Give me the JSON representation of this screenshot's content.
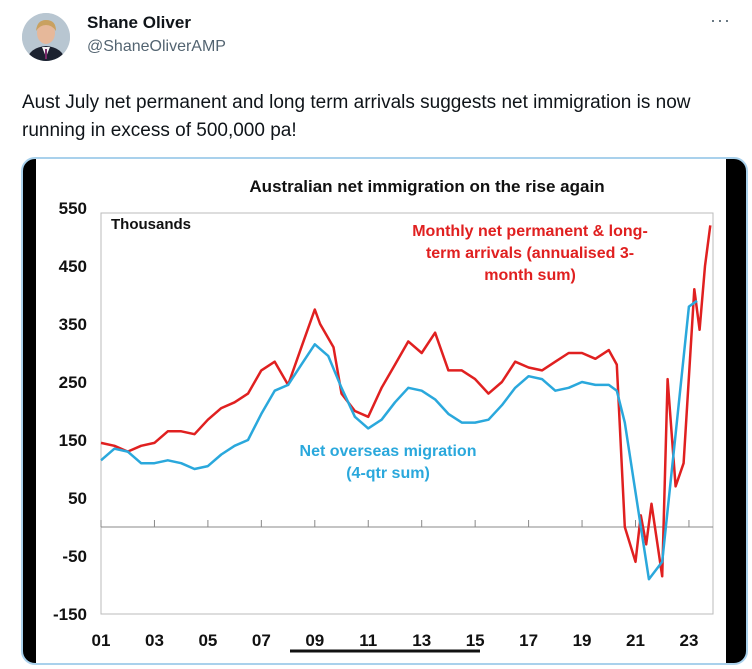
{
  "tweet": {
    "author_name": "Shane Oliver",
    "author_handle": "@ShaneOliverAMP",
    "more_icon": "more-horizontal-icon",
    "text": "Aust July net permanent and long term arrivals suggests net immigration is now running in excess of 500,000 pa!"
  },
  "chart_data": {
    "type": "line",
    "title": "Australian net immigration on the rise again",
    "unit_label": "Thousands",
    "ylim": [
      -150,
      550
    ],
    "yticks": [
      "550",
      "450",
      "350",
      "250",
      "150",
      "50",
      "-50",
      "-150"
    ],
    "xticks": [
      "01",
      "03",
      "05",
      "07",
      "09",
      "11",
      "13",
      "15",
      "17",
      "19",
      "21",
      "23"
    ],
    "xlim": [
      2001,
      2023.9
    ],
    "grid": false,
    "series": [
      {
        "name": "Monthly net permanent & long-term arrivals (annualised 3-month sum)",
        "color": "#e02020",
        "label_lines": [
          "Monthly net permanent & long-",
          "term arrivals (annualised 3-",
          "month sum)"
        ],
        "x": [
          2001,
          2001.5,
          2002,
          2002.5,
          2003,
          2003.5,
          2004,
          2004.5,
          2005,
          2005.5,
          2006,
          2006.5,
          2007,
          2007.5,
          2008,
          2008.5,
          2009,
          2009.2,
          2009.7,
          2010,
          2010.5,
          2011,
          2011.5,
          2012,
          2012.5,
          2013,
          2013.5,
          2014,
          2014.5,
          2015,
          2015.5,
          2016,
          2016.5,
          2017,
          2017.5,
          2018,
          2018.5,
          2019,
          2019.5,
          2020,
          2020.3,
          2020.6,
          2021,
          2021.2,
          2021.4,
          2021.6,
          2022,
          2022.2,
          2022.5,
          2022.8,
          2023.2,
          2023.4,
          2023.6,
          2023.8
        ],
        "values": [
          145,
          140,
          130,
          140,
          145,
          165,
          165,
          160,
          185,
          205,
          215,
          230,
          270,
          285,
          245,
          310,
          375,
          350,
          310,
          230,
          200,
          190,
          240,
          280,
          320,
          300,
          335,
          270,
          270,
          255,
          230,
          250,
          285,
          275,
          270,
          285,
          300,
          300,
          290,
          305,
          280,
          0,
          -60,
          20,
          -30,
          40,
          -85,
          255,
          70,
          110,
          410,
          340,
          450,
          520
        ]
      },
      {
        "name": "Net overseas migration (4-qtr sum)",
        "color": "#2aa8dc",
        "label_lines": [
          "Net overseas migration",
          "(4-qtr sum)"
        ],
        "x": [
          2001,
          2001.5,
          2002,
          2002.5,
          2003,
          2003.5,
          2004,
          2004.5,
          2005,
          2005.5,
          2006,
          2006.5,
          2007,
          2007.5,
          2008,
          2008.5,
          2009,
          2009.5,
          2010,
          2010.5,
          2011,
          2011.5,
          2012,
          2012.5,
          2013,
          2013.5,
          2014,
          2014.5,
          2015,
          2015.5,
          2016,
          2016.5,
          2017,
          2017.5,
          2018,
          2018.5,
          2019,
          2019.5,
          2020,
          2020.3,
          2020.6,
          2021,
          2021.5,
          2022,
          2022.5,
          2023,
          2023.3
        ],
        "values": [
          115,
          135,
          130,
          110,
          110,
          115,
          110,
          100,
          105,
          125,
          140,
          150,
          195,
          235,
          245,
          280,
          315,
          295,
          240,
          190,
          170,
          185,
          215,
          240,
          235,
          220,
          195,
          180,
          180,
          185,
          210,
          240,
          260,
          255,
          235,
          240,
          250,
          245,
          245,
          235,
          180,
          60,
          -90,
          -60,
          160,
          380,
          390
        ]
      }
    ]
  }
}
